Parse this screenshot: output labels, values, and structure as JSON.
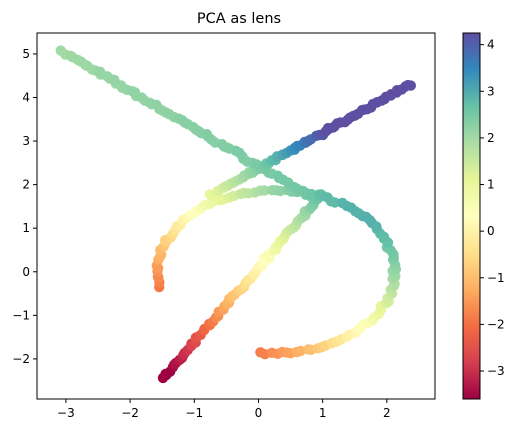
{
  "chart_data": {
    "type": "scatter",
    "title": "PCA as lens",
    "xlabel": "",
    "ylabel": "",
    "xlim": [
      -3.45,
      2.75
    ],
    "ylim": [
      -2.92,
      5.48
    ],
    "xticks": [
      -3,
      -2,
      -1,
      0,
      1,
      2
    ],
    "yticks": [
      -2,
      -1,
      0,
      1,
      2,
      3,
      4,
      5
    ],
    "grid": false,
    "colormap": "Spectral",
    "colorbar": {
      "range": [
        -3.6,
        4.25
      ],
      "ticks": [
        -3,
        -2,
        -1,
        0,
        1,
        2,
        3,
        4
      ]
    },
    "point_color_rule": "color value equals x + y",
    "arms": [
      {
        "x0": -3.05,
        "y0": 5.05,
        "x1": 0.85,
        "y1": 1.7
      },
      {
        "x0": 2.35,
        "y0": 4.3,
        "x1": -0.75,
        "y1": 1.75
      },
      {
        "x0": -1.5,
        "y0": -2.45,
        "x1": 1.0,
        "y1": 1.8
      }
    ],
    "ring": {
      "cx": 0.27,
      "cy": 0.0,
      "rx": 1.85,
      "ry": 1.87,
      "omitted_arc_deg": [
        192,
        260
      ]
    }
  }
}
